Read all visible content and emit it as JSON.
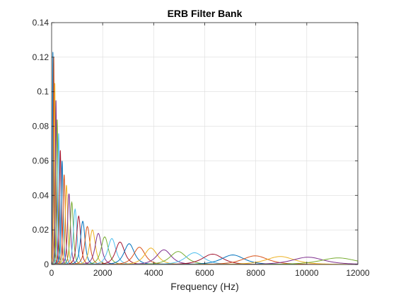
{
  "chart_data": {
    "type": "line",
    "title": "ERB Filter Bank",
    "xlabel": "Frequency (Hz)",
    "ylabel": "",
    "xlim": [
      0,
      12000
    ],
    "ylim": [
      0,
      0.14
    ],
    "xticks": [
      0,
      2000,
      4000,
      6000,
      8000,
      10000,
      12000
    ],
    "xtick_labels": [
      "0",
      "2000",
      "4000",
      "6000",
      "8000",
      "10000",
      "12000"
    ],
    "yticks": [
      0,
      0.02,
      0.04,
      0.06,
      0.08,
      0.1,
      0.12,
      0.14
    ],
    "ytick_labels": [
      "0",
      "0.02",
      "0.04",
      "0.06",
      "0.08",
      "0.1",
      "0.12",
      "0.14"
    ],
    "grid": true,
    "legend": "none",
    "palette": [
      "#0072bd",
      "#d95319",
      "#edb120",
      "#7e2f8e",
      "#77ac30",
      "#4dbeee",
      "#a2142f"
    ],
    "series": [
      {
        "center_hz": 50,
        "peak": 0.123
      },
      {
        "center_hz": 85,
        "peak": 0.12
      },
      {
        "center_hz": 125,
        "peak": 0.105
      },
      {
        "center_hz": 170,
        "peak": 0.095
      },
      {
        "center_hz": 220,
        "peak": 0.084
      },
      {
        "center_hz": 275,
        "peak": 0.076
      },
      {
        "center_hz": 340,
        "peak": 0.066
      },
      {
        "center_hz": 410,
        "peak": 0.06
      },
      {
        "center_hz": 490,
        "peak": 0.052
      },
      {
        "center_hz": 580,
        "peak": 0.046
      },
      {
        "center_hz": 680,
        "peak": 0.041
      },
      {
        "center_hz": 790,
        "peak": 0.036
      },
      {
        "center_hz": 920,
        "peak": 0.032
      },
      {
        "center_hz": 1060,
        "peak": 0.028
      },
      {
        "center_hz": 1220,
        "peak": 0.025
      },
      {
        "center_hz": 1400,
        "peak": 0.022
      },
      {
        "center_hz": 1600,
        "peak": 0.02
      },
      {
        "center_hz": 1830,
        "peak": 0.018
      },
      {
        "center_hz": 2080,
        "peak": 0.016
      },
      {
        "center_hz": 2360,
        "peak": 0.015
      },
      {
        "center_hz": 2680,
        "peak": 0.013
      },
      {
        "center_hz": 3040,
        "peak": 0.012
      },
      {
        "center_hz": 3440,
        "peak": 0.01
      },
      {
        "center_hz": 3890,
        "peak": 0.0095
      },
      {
        "center_hz": 4400,
        "peak": 0.0085
      },
      {
        "center_hz": 4960,
        "peak": 0.0075
      },
      {
        "center_hz": 5600,
        "peak": 0.0068
      },
      {
        "center_hz": 6310,
        "peak": 0.006
      },
      {
        "center_hz": 7100,
        "peak": 0.0055
      },
      {
        "center_hz": 7980,
        "peak": 0.005
      },
      {
        "center_hz": 8960,
        "peak": 0.0046
      },
      {
        "center_hz": 10050,
        "peak": 0.0042
      },
      {
        "center_hz": 11230,
        "peak": 0.0038
      }
    ]
  }
}
